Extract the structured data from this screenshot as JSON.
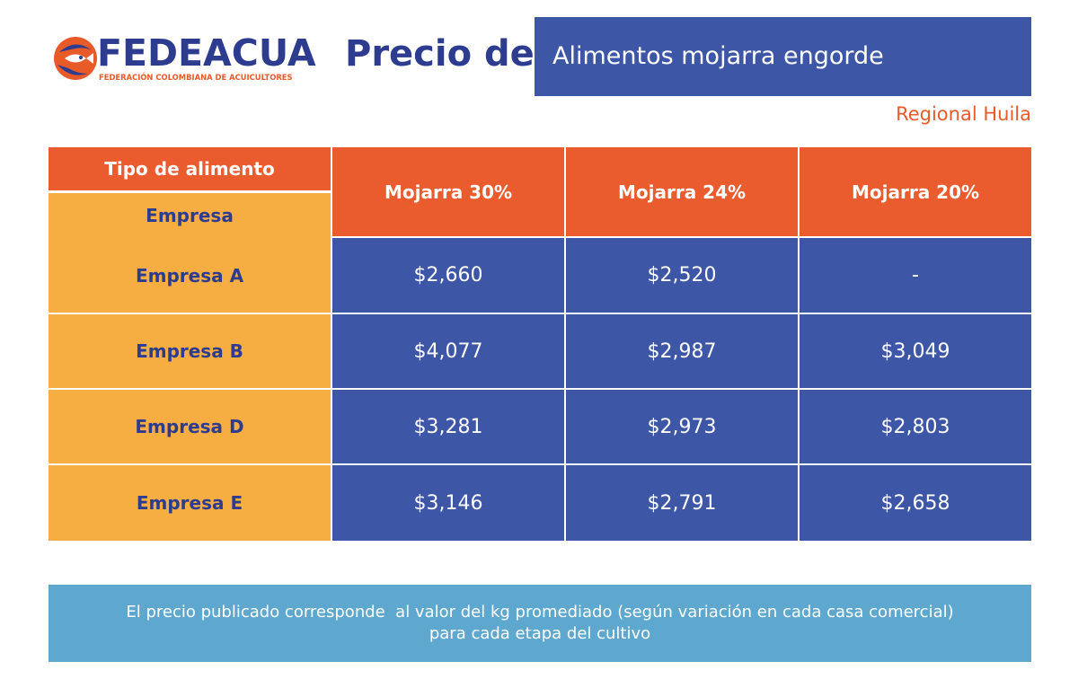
{
  "logo": {
    "name": "FEDEACUA",
    "subtitle": "FEDERACIÓN COLOMBIANA DE ACUICULTORES"
  },
  "header": {
    "title_prefix": "Precio de",
    "title": "Alimentos mojarra engorde",
    "region": "Regional Huila"
  },
  "table": {
    "corner_top": "Tipo de alimento",
    "corner_bottom": "Empresa",
    "columns": [
      "Mojarra 30%",
      "Mojarra 24%",
      "Mojarra 20%"
    ],
    "rows": [
      {
        "label": "Empresa A",
        "values": [
          "$2,660",
          "$2,520",
          "-"
        ]
      },
      {
        "label": "Empresa B",
        "values": [
          "$4,077",
          "$2,987",
          "$3,049"
        ]
      },
      {
        "label": "Empresa D",
        "values": [
          "$3,281",
          "$2,973",
          "$2,803"
        ]
      },
      {
        "label": "Empresa E",
        "values": [
          "$3,146",
          "$2,791",
          "$2,658"
        ]
      }
    ]
  },
  "note": {
    "line1": "El precio publicado corresponde  al valor del kg promediado (según variación en cada casa comercial)",
    "line2": "para cada etapa del cultivo"
  },
  "colors": {
    "brand_blue": "#2d3c8f",
    "cell_blue": "#3d56a5",
    "orange": "#ea5b2d",
    "yellow": "#f6ad42",
    "note_blue": "#5ea8d0"
  }
}
